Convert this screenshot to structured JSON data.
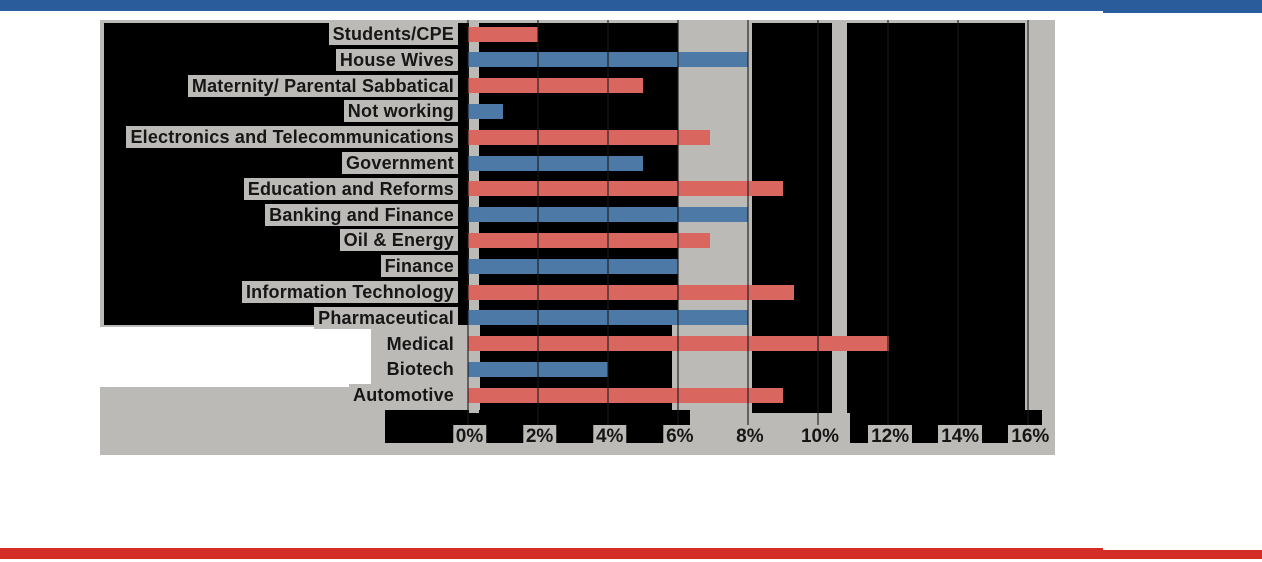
{
  "banners": {
    "top_color": "#2A5C9B",
    "bottom_color": "#D32D28"
  },
  "chart": {
    "background_color": "#BCBAB6",
    "panel_color": "#000000",
    "gridline_color": "rgba(25,25,25,0.55)",
    "label_text_color": "#161616",
    "label_highlight_color": "#BCBAB6"
  },
  "chart_data": {
    "type": "bar",
    "orientation": "horizontal",
    "title": "",
    "xlabel": "",
    "ylabel": "",
    "unit": "%",
    "categories": [
      "Students/CPE",
      "House Wives",
      "Maternity/ Parental Sabbatical",
      "Not working",
      "Electronics and Telecommunications",
      "Government",
      "Education and Reforms",
      "Banking and Finance",
      "Oil & Energy",
      "Finance",
      "Information Technology",
      "Pharmaceutical",
      "Medical",
      "Biotech",
      "Automotive"
    ],
    "values": [
      2.0,
      8.0,
      5.0,
      1.0,
      6.9,
      5.0,
      9.0,
      8.0,
      6.9,
      6.0,
      9.3,
      8.0,
      12.0,
      4.0,
      9.0
    ],
    "point_colors": [
      "#D9675F",
      "#4D79A7",
      "#D9675F",
      "#4D79A7",
      "#D9675F",
      "#4D79A7",
      "#D9675F",
      "#4D79A7",
      "#D9675F",
      "#4D79A7",
      "#D9675F",
      "#4D79A7",
      "#D9675F",
      "#4D79A7",
      "#D9675F"
    ],
    "bar_color_blue": "#4D79A7",
    "bar_color_red": "#D9675F",
    "x_ticks": [
      "0%",
      "2%",
      "4%",
      "6%",
      "8%",
      "10%",
      "12%",
      "14%",
      "16%"
    ],
    "xlim": [
      0,
      16
    ],
    "grid": true,
    "legend": false
  }
}
